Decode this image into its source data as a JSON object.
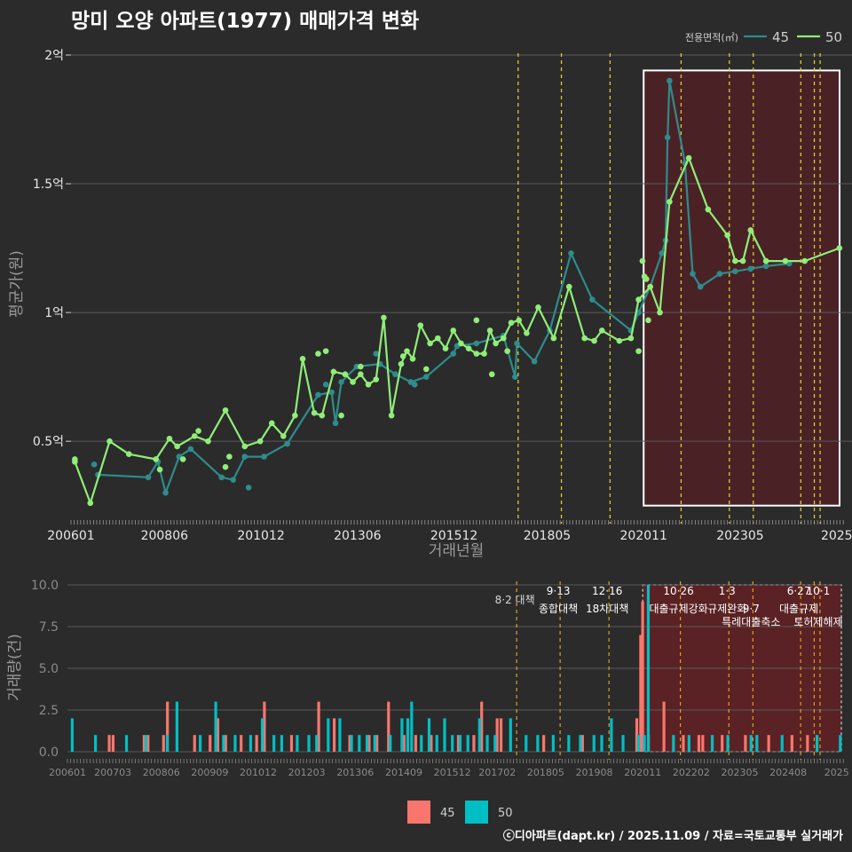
{
  "title": "망미 오양 아파트(1977) 매매가격 변화",
  "footer": "ⓒ디아파트(dapt.kr) / 2025.11.09 / 자료=국토교통부 실거래가",
  "colors": {
    "s45_line": "#2e8c8c",
    "s50_line": "#90ee78",
    "bar45": "#f8766d",
    "bar50": "#00bfc4",
    "policy": "#e6d832",
    "policy_bar": "#e0a020",
    "highlight": "#4a2226"
  },
  "chart_data": [
    {
      "type": "line",
      "title": "",
      "xlabel": "거래년월",
      "ylabel": "평균가(원)",
      "legend_title": "전용면적(㎡)",
      "legend_position": "top-right",
      "xlim": [
        2006.0,
        2025.95
      ],
      "ylim": [
        0.18,
        2.0
      ],
      "x_ticks": [
        {
          "v": 2006.0,
          "label": "200601"
        },
        {
          "v": 2008.42,
          "label": "200806"
        },
        {
          "v": 2010.92,
          "label": "201012"
        },
        {
          "v": 2013.42,
          "label": "201306"
        },
        {
          "v": 2015.92,
          "label": "201512"
        },
        {
          "v": 2018.33,
          "label": "201805"
        },
        {
          "v": 2020.83,
          "label": "202011"
        },
        {
          "v": 2023.33,
          "label": "202305"
        },
        {
          "v": 2025.83,
          "label": "2025"
        }
      ],
      "y_ticks": [
        {
          "v": 0.5,
          "label": "0.5억"
        },
        {
          "v": 1.0,
          "label": "1억"
        },
        {
          "v": 1.5,
          "label": "1.5억"
        },
        {
          "v": 2.0,
          "label": "2억"
        }
      ],
      "policy_dates": [
        2017.58,
        2018.7,
        2019.96,
        2021.8,
        2023.05,
        2023.67,
        2024.9,
        2025.25,
        2025.4
      ],
      "highlight_range": [
        2020.83,
        2025.95
      ],
      "highlight_y": [
        0.25,
        1.94
      ],
      "series": [
        {
          "name": "45",
          "x": [
            2006.7,
            2008.0,
            2008.25,
            2008.45,
            2008.8,
            2009.1,
            2009.9,
            2010.2,
            2010.5,
            2011.0,
            2011.6,
            2012.4,
            2012.75,
            2012.85,
            2013.0,
            2013.4,
            2014.0,
            2014.4,
            2014.8,
            2015.2,
            2015.9,
            2016.0,
            2016.5,
            2017.2,
            2017.5,
            2017.55,
            2018.0,
            2018.4,
            2018.95,
            2019.5,
            2020.5,
            2020.7,
            2021.0,
            2021.3,
            2021.4,
            2021.45,
            2021.5,
            2021.9,
            2022.1,
            2022.3,
            2022.8,
            2023.2,
            2023.6,
            2024.0,
            2024.6
          ],
          "values": [
            0.37,
            0.36,
            0.42,
            0.3,
            0.44,
            0.47,
            0.36,
            0.35,
            0.44,
            0.44,
            0.49,
            0.68,
            0.69,
            0.57,
            0.73,
            0.79,
            0.8,
            0.76,
            0.73,
            0.75,
            0.84,
            0.87,
            0.88,
            0.91,
            0.75,
            0.88,
            0.81,
            0.93,
            1.23,
            1.05,
            0.93,
            1.0,
            1.1,
            1.23,
            1.28,
            1.68,
            1.9,
            1.58,
            1.15,
            1.1,
            1.15,
            1.16,
            1.17,
            1.18,
            1.19
          ],
          "extra_points": [
            [
              2006.6,
              0.41
            ],
            [
              2010.6,
              0.32
            ],
            [
              2012.6,
              0.72
            ],
            [
              2013.9,
              0.84
            ],
            [
              2014.9,
              0.72
            ]
          ]
        },
        {
          "name": "50",
          "x": [
            2006.1,
            2006.5,
            2007.0,
            2007.5,
            2008.2,
            2008.55,
            2008.75,
            2009.2,
            2009.55,
            2010.0,
            2010.5,
            2010.9,
            2011.2,
            2011.5,
            2011.8,
            2012.0,
            2012.3,
            2012.5,
            2012.8,
            2013.1,
            2013.3,
            2013.5,
            2013.7,
            2013.9,
            2014.1,
            2014.3,
            2014.55,
            2014.7,
            2014.85,
            2015.05,
            2015.3,
            2015.5,
            2015.7,
            2015.9,
            2016.1,
            2016.3,
            2016.5,
            2016.7,
            2016.85,
            2017.0,
            2017.2,
            2017.4,
            2017.6,
            2017.8,
            2018.1,
            2018.5,
            2018.9,
            2019.3,
            2019.55,
            2019.75,
            2020.2,
            2020.5,
            2020.7,
            2021.0,
            2021.25,
            2021.5,
            2022.0,
            2022.5,
            2023.0,
            2023.2,
            2023.4,
            2023.6,
            2024.0,
            2024.5,
            2025.0,
            2025.9
          ],
          "values": [
            0.42,
            0.26,
            0.5,
            0.45,
            0.43,
            0.51,
            0.48,
            0.52,
            0.5,
            0.62,
            0.48,
            0.5,
            0.57,
            0.52,
            0.6,
            0.82,
            0.61,
            0.6,
            0.77,
            0.76,
            0.73,
            0.76,
            0.72,
            0.74,
            0.98,
            0.6,
            0.8,
            0.85,
            0.82,
            0.95,
            0.88,
            0.9,
            0.86,
            0.93,
            0.88,
            0.86,
            0.84,
            0.84,
            0.93,
            0.88,
            0.9,
            0.96,
            0.97,
            0.92,
            1.02,
            0.9,
            1.1,
            0.9,
            0.89,
            0.93,
            0.89,
            0.9,
            1.05,
            1.1,
            1.0,
            1.43,
            1.6,
            1.4,
            1.3,
            1.2,
            1.2,
            1.32,
            1.2,
            1.2,
            1.2,
            1.25
          ],
          "extra_points": [
            [
              2006.1,
              0.43
            ],
            [
              2008.3,
              0.39
            ],
            [
              2008.9,
              0.43
            ],
            [
              2009.3,
              0.54
            ],
            [
              2010.0,
              0.4
            ],
            [
              2010.1,
              0.44
            ],
            [
              2012.4,
              0.84
            ],
            [
              2012.6,
              0.85
            ],
            [
              2013.0,
              0.6
            ],
            [
              2013.5,
              0.79
            ],
            [
              2014.6,
              0.83
            ],
            [
              2015.2,
              0.78
            ],
            [
              2016.5,
              0.97
            ],
            [
              2016.9,
              0.76
            ],
            [
              2017.3,
              0.85
            ],
            [
              2020.7,
              0.85
            ],
            [
              2020.8,
              1.2
            ],
            [
              2020.85,
              1.14
            ],
            [
              2020.9,
              1.13
            ],
            [
              2020.95,
              0.97
            ]
          ]
        }
      ]
    },
    {
      "type": "bar",
      "title": "",
      "xlabel": "",
      "ylabel": "거래량(건)",
      "ylim": [
        0,
        10
      ],
      "y_ticks": [
        {
          "v": 0,
          "label": "0.0"
        },
        {
          "v": 2.5,
          "label": "2.5"
        },
        {
          "v": 5,
          "label": "5.0"
        },
        {
          "v": 7.5,
          "label": "7.5"
        },
        {
          "v": 10,
          "label": "10.0"
        }
      ],
      "x_ticks": [
        {
          "v": 2006.0,
          "label": "200601"
        },
        {
          "v": 2007.17,
          "label": "200703"
        },
        {
          "v": 2008.42,
          "label": "200806"
        },
        {
          "v": 2009.67,
          "label": "200909"
        },
        {
          "v": 2010.92,
          "label": "201012"
        },
        {
          "v": 2012.17,
          "label": "201203"
        },
        {
          "v": 2013.42,
          "label": "201306"
        },
        {
          "v": 2014.67,
          "label": "201409"
        },
        {
          "v": 2015.92,
          "label": "201512"
        },
        {
          "v": 2017.08,
          "label": "201702"
        },
        {
          "v": 2018.33,
          "label": "201805"
        },
        {
          "v": 2019.58,
          "label": "201908"
        },
        {
          "v": 2020.83,
          "label": "202011"
        },
        {
          "v": 2022.08,
          "label": "202202"
        },
        {
          "v": 2023.33,
          "label": "202305"
        },
        {
          "v": 2024.58,
          "label": "202408"
        },
        {
          "v": 2025.83,
          "label": "2025"
        }
      ],
      "policy_labels": [
        {
          "x": 2017.58,
          "date": "",
          "text": "8·2 대책"
        },
        {
          "x": 2018.7,
          "date": "9·13",
          "text": "종합대책"
        },
        {
          "x": 2019.96,
          "date": "12·16",
          "text": "18차대책"
        },
        {
          "x": 2021.8,
          "date": "10·26",
          "text": "대출규제강화"
        },
        {
          "x": 2023.05,
          "date": "1·3",
          "text": "규제완화"
        },
        {
          "x": 2023.67,
          "date": "9·7",
          "text": "특례대출축소"
        },
        {
          "x": 2024.9,
          "date": "6·27",
          "text": "대출규제"
        },
        {
          "x": 2025.4,
          "date": "10·1",
          "text": "토허제해제"
        }
      ],
      "series": [
        {
          "name": "45",
          "x": [
            2007.1,
            2007.2,
            2008.0,
            2008.1,
            2008.5,
            2008.6,
            2009.3,
            2009.7,
            2009.9,
            2010.1,
            2010.5,
            2010.9,
            2011.1,
            2011.8,
            2012.5,
            2012.9,
            2013.3,
            2013.8,
            2014.0,
            2014.3,
            2014.7,
            2015.0,
            2015.4,
            2016.1,
            2016.5,
            2016.7,
            2017.1,
            2017.2,
            2018.3,
            2019.3,
            2020.7,
            2020.8,
            2020.85,
            2021.0,
            2021.4,
            2021.9,
            2022.3,
            2022.4,
            2022.9,
            2023.5,
            2024.1,
            2024.7,
            2025.1
          ],
          "values": [
            1,
            1,
            1,
            1,
            1,
            3,
            1,
            1,
            2,
            1,
            1,
            1,
            3,
            1,
            3,
            2,
            1,
            1,
            1,
            3,
            1,
            1,
            1,
            1,
            1,
            3,
            2,
            2,
            1,
            1,
            2,
            7,
            9,
            1,
            3,
            1,
            1,
            1,
            1,
            1,
            1,
            1,
            1
          ]
        },
        {
          "name": "50",
          "x": [
            2006.1,
            2006.7,
            2007.5,
            2008.0,
            2008.55,
            2008.8,
            2009.4,
            2009.8,
            2010.0,
            2010.3,
            2010.7,
            2011.0,
            2011.3,
            2011.5,
            2011.9,
            2012.2,
            2012.4,
            2012.7,
            2013.0,
            2013.3,
            2013.5,
            2013.7,
            2013.9,
            2014.3,
            2014.6,
            2014.75,
            2014.85,
            2015.1,
            2015.3,
            2015.5,
            2015.7,
            2015.9,
            2016.1,
            2016.3,
            2016.6,
            2016.8,
            2017.0,
            2017.4,
            2017.8,
            2018.1,
            2018.5,
            2018.9,
            2019.2,
            2019.55,
            2019.75,
            2020.0,
            2020.3,
            2020.7,
            2020.85,
            2020.95,
            2021.6,
            2022.0,
            2022.6,
            2023.0,
            2023.6,
            2023.75,
            2024.4,
            2025.3,
            2025.9
          ],
          "values": [
            2,
            1,
            1,
            1,
            1,
            3,
            1,
            3,
            1,
            1,
            1,
            2,
            1,
            1,
            1,
            1,
            1,
            2,
            2,
            1,
            1,
            1,
            1,
            1,
            2,
            2,
            3,
            1,
            2,
            1,
            2,
            1,
            1,
            1,
            2,
            1,
            1,
            2,
            1,
            1,
            1,
            1,
            1,
            1,
            1,
            2,
            1,
            1,
            1,
            10,
            1,
            1,
            1,
            1,
            1,
            1,
            1,
            1,
            1
          ]
        }
      ],
      "legend": [
        "45",
        "50"
      ]
    }
  ]
}
